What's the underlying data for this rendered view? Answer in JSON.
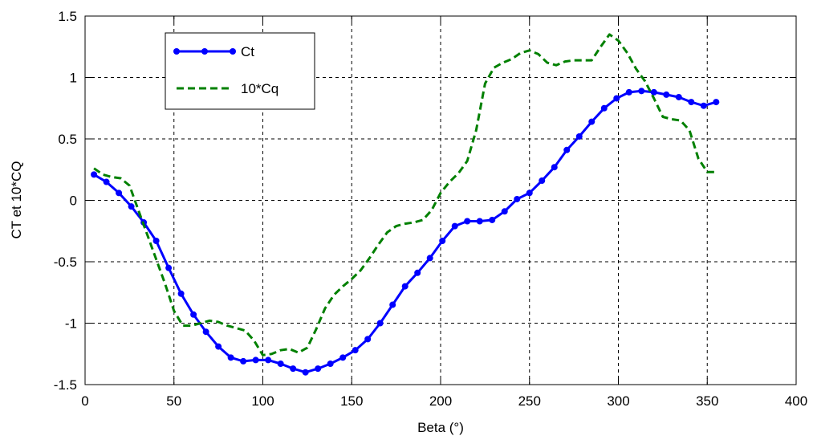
{
  "chart_data": {
    "type": "line",
    "xlabel": "Beta (°)",
    "ylabel": "CT et 10*CQ",
    "xlim": [
      0,
      400
    ],
    "ylim": [
      -1.5,
      1.5
    ],
    "xticks": [
      0,
      50,
      100,
      150,
      200,
      250,
      300,
      350,
      400
    ],
    "yticks": [
      -1.5,
      -1,
      -0.5,
      0,
      0.5,
      1,
      1.5
    ],
    "x_tick_labels": [
      "0",
      "50",
      "100",
      "150",
      "200",
      "250",
      "300",
      "350",
      "400"
    ],
    "y_tick_labels": [
      "-1.5",
      "-1",
      "-0.5",
      "0",
      "0.5",
      "1",
      "1.5"
    ],
    "grid": true,
    "legend_position": "top-left",
    "series": [
      {
        "name": "Ct",
        "color": "#0000ff",
        "style": "solid-with-markers",
        "x": [
          5,
          12,
          19,
          26,
          33,
          40,
          47,
          54,
          61,
          68,
          75,
          82,
          89,
          96,
          103,
          110,
          117,
          124,
          131,
          138,
          145,
          152,
          159,
          166,
          173,
          180,
          187,
          194,
          201,
          208,
          215,
          222,
          229,
          236,
          243,
          250,
          257,
          264,
          271,
          278,
          285,
          292,
          299,
          306,
          313,
          320,
          327,
          334,
          341,
          348,
          355
        ],
        "y": [
          0.21,
          0.15,
          0.06,
          -0.05,
          -0.18,
          -0.33,
          -0.55,
          -0.76,
          -0.93,
          -1.07,
          -1.19,
          -1.28,
          -1.31,
          -1.3,
          -1.3,
          -1.33,
          -1.37,
          -1.4,
          -1.37,
          -1.33,
          -1.28,
          -1.22,
          -1.13,
          -1.0,
          -0.85,
          -0.7,
          -0.59,
          -0.47,
          -0.33,
          -0.21,
          -0.17,
          -0.17,
          -0.16,
          -0.09,
          0.01,
          0.06,
          0.16,
          0.27,
          0.41,
          0.52,
          0.64,
          0.75,
          0.83,
          0.88,
          0.89,
          0.88,
          0.86,
          0.84,
          0.8,
          0.77,
          0.8
        ]
      },
      {
        "name": "10*Cq",
        "color": "#008000",
        "style": "dashed",
        "x": [
          5,
          10,
          15,
          20,
          25,
          30,
          35,
          40,
          45,
          50,
          55,
          60,
          65,
          70,
          75,
          80,
          85,
          90,
          95,
          100,
          105,
          110,
          115,
          120,
          125,
          130,
          135,
          140,
          145,
          150,
          155,
          160,
          165,
          170,
          175,
          180,
          185,
          190,
          195,
          200,
          205,
          210,
          215,
          220,
          225,
          230,
          235,
          240,
          245,
          250,
          255,
          260,
          265,
          270,
          275,
          280,
          285,
          290,
          295,
          300,
          305,
          310,
          315,
          320,
          325,
          330,
          335,
          340,
          345,
          350,
          355
        ],
        "y": [
          0.26,
          0.21,
          0.19,
          0.18,
          0.12,
          -0.08,
          -0.28,
          -0.48,
          -0.68,
          -0.9,
          -1.02,
          -1.02,
          -1.0,
          -0.98,
          -0.99,
          -1.02,
          -1.04,
          -1.06,
          -1.14,
          -1.26,
          -1.25,
          -1.22,
          -1.21,
          -1.24,
          -1.2,
          -1.05,
          -0.88,
          -0.77,
          -0.7,
          -0.64,
          -0.57,
          -0.47,
          -0.36,
          -0.26,
          -0.21,
          -0.19,
          -0.18,
          -0.16,
          -0.08,
          0.06,
          0.15,
          0.22,
          0.32,
          0.57,
          0.95,
          1.08,
          1.12,
          1.15,
          1.2,
          1.22,
          1.19,
          1.12,
          1.1,
          1.13,
          1.14,
          1.14,
          1.14,
          1.25,
          1.35,
          1.3,
          1.2,
          1.07,
          0.97,
          0.83,
          0.68,
          0.66,
          0.65,
          0.57,
          0.34,
          0.23,
          0.23
        ]
      }
    ]
  }
}
